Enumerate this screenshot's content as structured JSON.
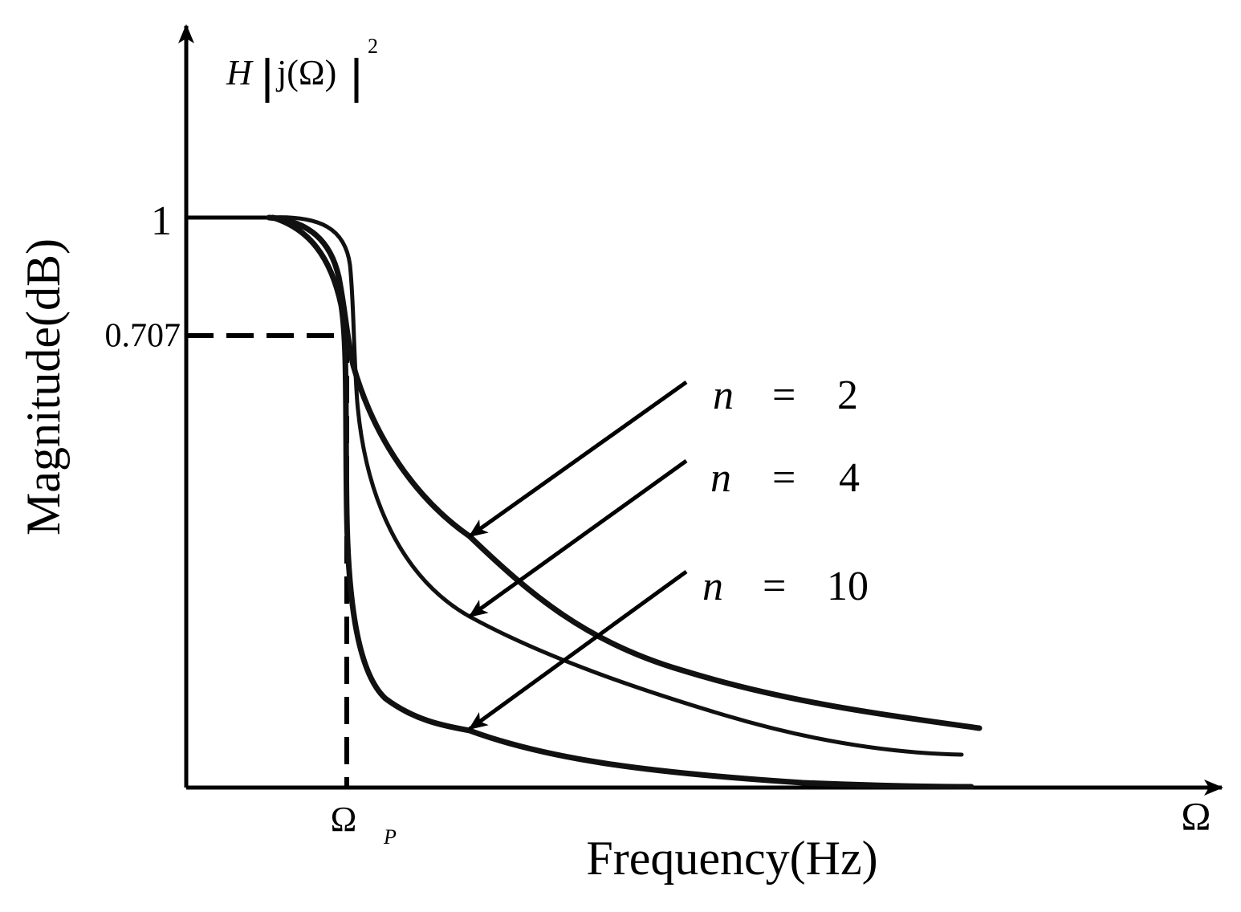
{
  "annotation": {
    "h": "H",
    "j": "j(Ω)",
    "power": "2"
  },
  "axes": {
    "y_label": "Magnitude(dB)",
    "x_label": "Frequency(Hz)",
    "y_tick_1": "1",
    "y_tick_2": "0.707",
    "x_tick_symbol": "Ω",
    "x_tick_subscript": "P",
    "x_end": "Ω"
  },
  "labels": [
    {
      "n": "n",
      "eq": "=",
      "value": "2"
    },
    {
      "n": "n",
      "eq": "=",
      "value": "4"
    },
    {
      "n": "n",
      "eq": "=",
      "value": "10"
    }
  ]
}
